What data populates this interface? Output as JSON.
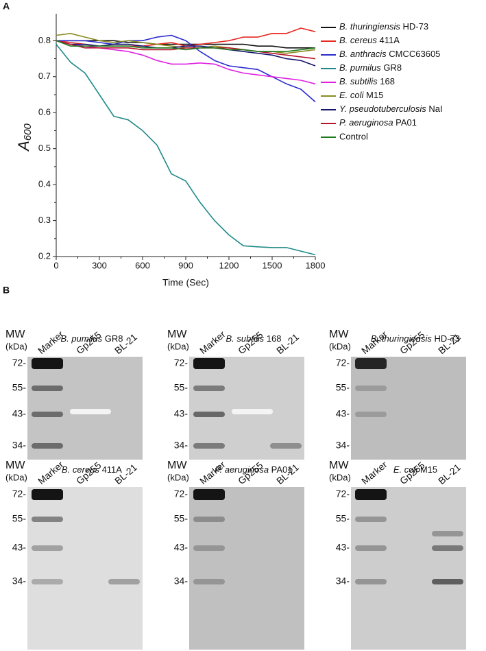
{
  "chart_data": {
    "type": "line",
    "panel_label": "A",
    "x_label": "Time (Sec)",
    "y_label": "A600",
    "x": [
      0,
      100,
      200,
      300,
      400,
      500,
      600,
      700,
      800,
      900,
      1000,
      1100,
      1200,
      1300,
      1400,
      1500,
      1600,
      1700,
      1800
    ],
    "xlim": [
      0,
      1800
    ],
    "xticks": [
      0,
      300,
      600,
      900,
      1200,
      1500,
      1800
    ],
    "ylim": [
      0.2,
      0.875
    ],
    "yticks": [
      0.2,
      0.3,
      0.4,
      0.5,
      0.6,
      0.7,
      0.8
    ],
    "series": [
      {
        "name": "B. thuringiensis HD-73",
        "color": "#111111",
        "values": [
          0.8,
          0.8,
          0.8,
          0.8,
          0.8,
          0.795,
          0.795,
          0.79,
          0.79,
          0.79,
          0.79,
          0.79,
          0.79,
          0.79,
          0.785,
          0.785,
          0.78,
          0.78,
          0.78
        ]
      },
      {
        "name": "B. cereus 411A",
        "color": "#e8281e",
        "values": [
          0.8,
          0.795,
          0.79,
          0.785,
          0.785,
          0.785,
          0.785,
          0.79,
          0.795,
          0.785,
          0.79,
          0.795,
          0.8,
          0.81,
          0.81,
          0.82,
          0.82,
          0.835,
          0.825
        ]
      },
      {
        "name": "B. anthracis CMCC63605",
        "color": "#2a2ad0",
        "values": [
          0.8,
          0.8,
          0.8,
          0.795,
          0.79,
          0.8,
          0.8,
          0.81,
          0.815,
          0.8,
          0.77,
          0.745,
          0.73,
          0.725,
          0.72,
          0.7,
          0.68,
          0.665,
          0.63
        ]
      },
      {
        "name": "B. pumilus GR8",
        "color": "#1f8a8a",
        "values": [
          0.79,
          0.74,
          0.71,
          0.65,
          0.59,
          0.58,
          0.55,
          0.51,
          0.43,
          0.41,
          0.35,
          0.3,
          0.26,
          0.23,
          0.227,
          0.225,
          0.225,
          0.215,
          0.205
        ]
      },
      {
        "name": "B. subtilis 168",
        "color": "#e020e0",
        "values": [
          0.8,
          0.79,
          0.785,
          0.78,
          0.775,
          0.77,
          0.76,
          0.745,
          0.735,
          0.735,
          0.738,
          0.735,
          0.72,
          0.71,
          0.705,
          0.7,
          0.695,
          0.69,
          0.68
        ]
      },
      {
        "name": "E. coli M15",
        "color": "#8a8a1e",
        "values": [
          0.815,
          0.82,
          0.81,
          0.8,
          0.795,
          0.8,
          0.795,
          0.79,
          0.785,
          0.78,
          0.78,
          0.785,
          0.78,
          0.775,
          0.77,
          0.77,
          0.765,
          0.77,
          0.775
        ]
      },
      {
        "name": "Y. pseudotuberculosis NaI",
        "color": "#14146e",
        "values": [
          0.8,
          0.79,
          0.79,
          0.785,
          0.79,
          0.79,
          0.785,
          0.78,
          0.78,
          0.785,
          0.785,
          0.78,
          0.775,
          0.77,
          0.765,
          0.76,
          0.75,
          0.745,
          0.73
        ]
      },
      {
        "name": "P. aeruginosa PA01",
        "color": "#b4142a",
        "values": [
          0.8,
          0.79,
          0.78,
          0.78,
          0.78,
          0.78,
          0.775,
          0.775,
          0.775,
          0.78,
          0.78,
          0.78,
          0.78,
          0.775,
          0.77,
          0.765,
          0.76,
          0.755,
          0.75
        ]
      },
      {
        "name": "Control",
        "color": "#1e7a1e",
        "values": [
          0.8,
          0.785,
          0.785,
          0.785,
          0.785,
          0.785,
          0.78,
          0.78,
          0.78,
          0.775,
          0.78,
          0.78,
          0.775,
          0.775,
          0.77,
          0.77,
          0.77,
          0.775,
          0.78
        ]
      }
    ],
    "legend": "upper right"
  },
  "figure_b": {
    "panel_label": "B",
    "mw_label": "MW",
    "unit_label": "(kDa)",
    "lanes": [
      "Marker",
      "Gp255",
      "BL-21"
    ],
    "markers": [
      "72-",
      "55-",
      "43-",
      "34-"
    ],
    "gels": [
      {
        "title": "B. pumilus GR8"
      },
      {
        "title": "B. subtilis 168"
      },
      {
        "title": "B. thuringiensis HD-73"
      },
      {
        "title": "B. cereus 411A"
      },
      {
        "title": "P. aeruginosa PA01"
      },
      {
        "title": "E. coli M15"
      }
    ]
  }
}
